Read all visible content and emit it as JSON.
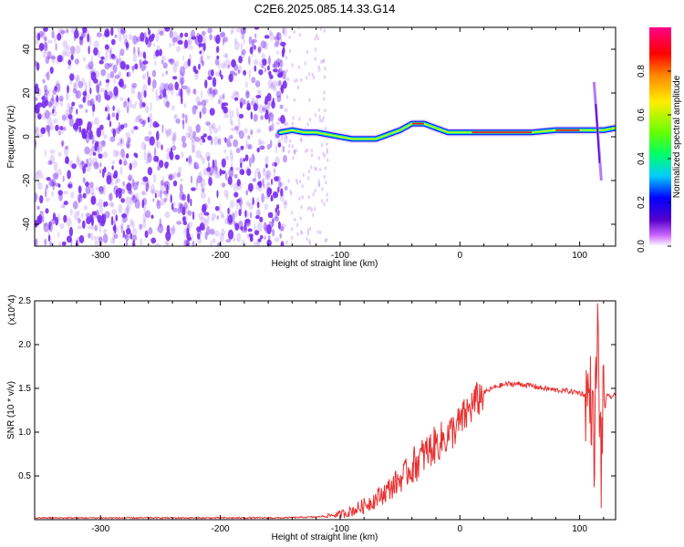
{
  "title": "C2E6.2025.085.14.33.G14",
  "chart_data": [
    {
      "type": "heatmap",
      "xlabel": "Height of straight line (km)",
      "ylabel": "Frequency (Hz)",
      "xlim": [
        -355,
        130
      ],
      "ylim": [
        -50,
        50
      ],
      "xticks": [
        -300,
        -200,
        -100,
        0,
        100
      ],
      "yticks": [
        -40,
        -20,
        0,
        20,
        40
      ],
      "colorbar": {
        "label": "Normalized spectral amplitude",
        "range": [
          0,
          1
        ],
        "ticks": [
          "0.0",
          "0.2",
          "0.4",
          "0.6",
          "0.8"
        ],
        "colors": [
          "#ffffff",
          "#cc66ff",
          "#5500cc",
          "#0000ff",
          "#00ccff",
          "#00ff66",
          "#66ff00",
          "#ffee00",
          "#ff8800",
          "#ff0000",
          "#ff0088"
        ]
      },
      "noise_region": {
        "x": [
          -355,
          -145
        ],
        "color": "#7a2cf0"
      },
      "ridge": {
        "x": [
          -150,
          -140,
          -130,
          -120,
          -110,
          -100,
          -90,
          -80,
          -70,
          -60,
          -50,
          -40,
          -30,
          -20,
          -10,
          0,
          10,
          20,
          40,
          60,
          80,
          100,
          110,
          120,
          130
        ],
        "y": [
          2,
          3,
          2,
          2,
          1,
          0,
          -1,
          -1,
          -1,
          1,
          3,
          6,
          6,
          4,
          2,
          2,
          2,
          2,
          2,
          2,
          3,
          3,
          3,
          3,
          4
        ]
      },
      "grid": false
    },
    {
      "type": "line",
      "xlabel": "Height of straight line (km)",
      "ylabel": "SNR (10 * v/v)",
      "y_multiplier": "(x10^4)",
      "xlim": [
        -355,
        130
      ],
      "ylim": [
        0,
        2.5
      ],
      "xticks": [
        -300,
        -200,
        -100,
        0,
        100
      ],
      "yticks": [
        0.5,
        1.0,
        1.5,
        2.0,
        2.5
      ],
      "ytick_labels": [
        "0.5",
        "1.0",
        "1.5",
        "2.0",
        "2.5"
      ],
      "color": "#e83030",
      "series": [
        {
          "x": [
            -355,
            -300,
            -250,
            -200,
            -150,
            -120,
            -100,
            -90,
            -80,
            -70,
            -60,
            -50,
            -40,
            -30,
            -20,
            -10,
            0,
            10,
            20,
            30,
            40,
            50,
            60,
            70,
            80,
            90,
            100,
            105,
            110,
            112,
            115,
            118,
            120,
            125,
            130
          ],
          "y": [
            0.02,
            0.02,
            0.02,
            0.02,
            0.02,
            0.03,
            0.06,
            0.1,
            0.16,
            0.24,
            0.34,
            0.46,
            0.6,
            0.74,
            0.86,
            0.96,
            1.1,
            1.3,
            1.45,
            1.52,
            1.55,
            1.55,
            1.53,
            1.5,
            1.48,
            1.47,
            1.45,
            1.42,
            1.38,
            0.8,
            2.1,
            0.6,
            1.42,
            1.4,
            1.42
          ]
        }
      ],
      "grid": false
    }
  ]
}
